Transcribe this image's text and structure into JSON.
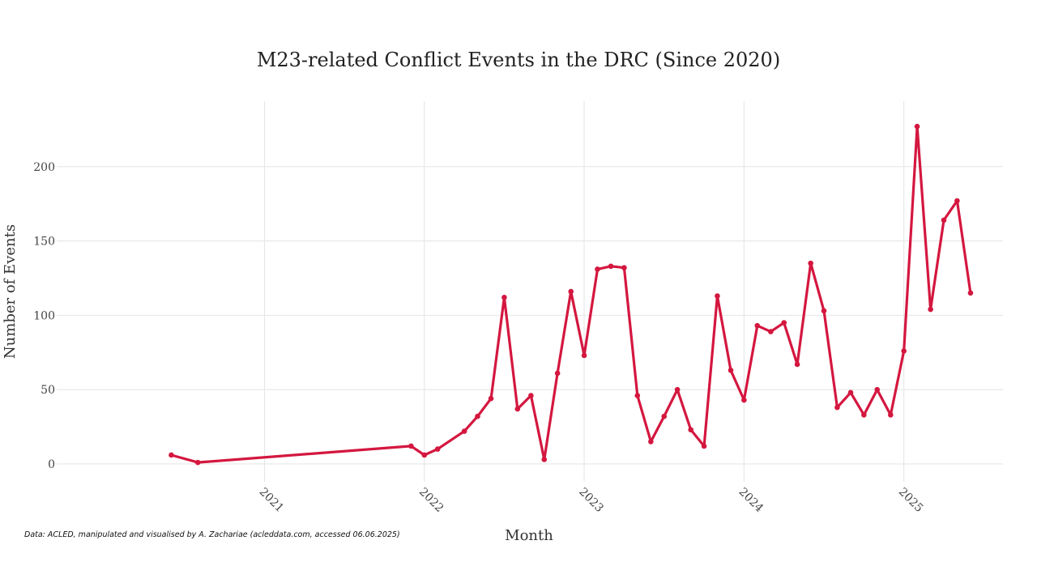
{
  "chart_data": {
    "type": "line",
    "title": "M23-related Conflict Events in the DRC (Since 2020)",
    "xlabel": "Month",
    "ylabel": "Number of Events",
    "source_note": "Data: ACLED, manipulated and visualised by A. Zachariae (acleddata.com, accessed 06.06.2025)",
    "x_tick_labels": [
      "2021",
      "2022",
      "2023",
      "2024",
      "2025"
    ],
    "x_tick_values": [
      2021.0,
      2022.0,
      2023.0,
      2024.0,
      2025.0
    ],
    "y_ticks": [
      0,
      50,
      100,
      150,
      200
    ],
    "xlim": [
      2019.7,
      2025.62
    ],
    "ylim": [
      -12,
      244
    ],
    "grid": true,
    "legend": "none",
    "color": "#d4173f",
    "series": [
      {
        "name": "M23-related events",
        "x": [
          2020.417,
          2020.583,
          2021.917,
          2022.0,
          2022.083,
          2022.25,
          2022.333,
          2022.417,
          2022.5,
          2022.583,
          2022.667,
          2022.75,
          2022.833,
          2022.917,
          2023.0,
          2023.083,
          2023.167,
          2023.25,
          2023.333,
          2023.417,
          2023.5,
          2023.583,
          2023.667,
          2023.75,
          2023.833,
          2023.917,
          2024.0,
          2024.083,
          2024.167,
          2024.25,
          2024.333,
          2024.417,
          2024.5,
          2024.583,
          2024.667,
          2024.75,
          2024.833,
          2024.917,
          2025.0,
          2025.083,
          2025.167,
          2025.25,
          2025.333,
          2025.417
        ],
        "values": [
          6,
          1,
          12,
          6,
          10,
          22,
          32,
          44,
          112,
          37,
          46,
          3,
          61,
          116,
          73,
          131,
          133,
          132,
          46,
          15,
          32,
          50,
          23,
          12,
          113,
          63,
          43,
          93,
          89,
          95,
          67,
          135,
          103,
          38,
          48,
          33,
          50,
          33,
          76,
          227,
          104,
          164,
          177,
          115
        ]
      }
    ]
  }
}
